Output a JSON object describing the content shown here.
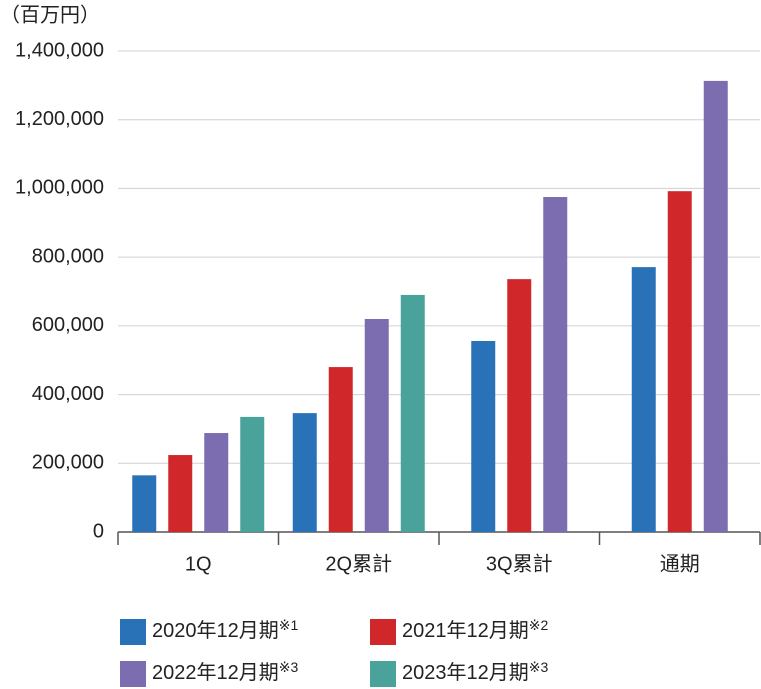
{
  "chart_data": {
    "type": "bar",
    "y_unit_label": "（百万円）",
    "categories": [
      "1Q",
      "2Q累計",
      "3Q累計",
      "通期"
    ],
    "series": [
      {
        "name": "2020年12月期※1",
        "color": "#2a72b8",
        "values": [
          165000,
          346000,
          556000,
          771000
        ]
      },
      {
        "name": "2021年12月期※2",
        "color": "#d0282a",
        "values": [
          224000,
          480000,
          736000,
          992000
        ]
      },
      {
        "name": "2022年12月期※3",
        "color": "#7c6db0",
        "values": [
          288000,
          620000,
          975000,
          1313000
        ]
      },
      {
        "name": "2023年12月期※3",
        "color": "#4aa39b",
        "values": [
          335000,
          690000,
          null,
          null
        ]
      }
    ],
    "ylim": [
      0,
      1400000
    ],
    "yticks": [
      0,
      {
        "value": 200000,
        "label": "200,000"
      },
      {
        "value": 400000,
        "label": "400,000"
      },
      {
        "value": 600000,
        "label": "600,000"
      },
      {
        "value": 800000,
        "label": "800,000"
      },
      {
        "value": 1000000,
        "label": "1,000,000"
      },
      {
        "value": 1200000,
        "label": "1,200,000"
      },
      {
        "value": 1400000,
        "label": "1,400,000"
      }
    ],
    "grid": true
  }
}
